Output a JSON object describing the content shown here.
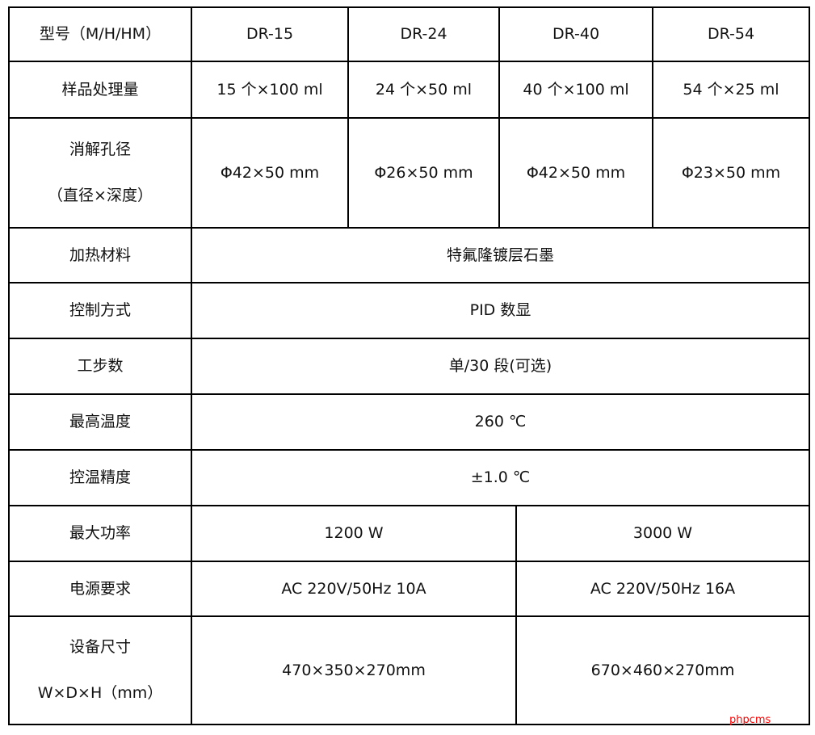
{
  "header": {
    "label": "型号（M/H/HM）",
    "models": [
      "DR-15",
      "DR-24",
      "DR-40",
      "DR-54"
    ]
  },
  "rows": {
    "capacity": {
      "label": "样品处理量",
      "values": [
        "15 个×100 ml",
        "24 个×50 ml",
        "40 个×100 ml",
        "54 个×25 ml"
      ]
    },
    "hole": {
      "label1": "消解孔径",
      "label2": "（直径×深度）",
      "values": [
        "Φ42×50 mm",
        "Φ26×50 mm",
        "Φ42×50 mm",
        "Φ23×50 mm"
      ]
    },
    "heating": {
      "label": "加热材料",
      "value": "特氟隆镀层石墨"
    },
    "control": {
      "label": "控制方式",
      "value": "PID 数显"
    },
    "steps": {
      "label": "工步数",
      "value": "单/30 段(可选)"
    },
    "max_temp": {
      "label": "最高温度",
      "value": "260 ℃"
    },
    "accuracy": {
      "label": "控温精度",
      "value": "±1.0 ℃"
    },
    "power": {
      "label": "最大功率",
      "values": [
        "1200 W",
        "3000 W"
      ]
    },
    "supply": {
      "label": "电源要求",
      "values": [
        "AC 220V/50Hz 10A",
        "AC 220V/50Hz 16A"
      ]
    },
    "size": {
      "label1": "设备尺寸",
      "label2": "W×D×H（mm）",
      "values": [
        "470×350×270mm",
        "670×460×270mm"
      ]
    }
  },
  "watermark": "phpcms",
  "colors": {
    "border": "#000000",
    "watermark": "#ff0000"
  }
}
